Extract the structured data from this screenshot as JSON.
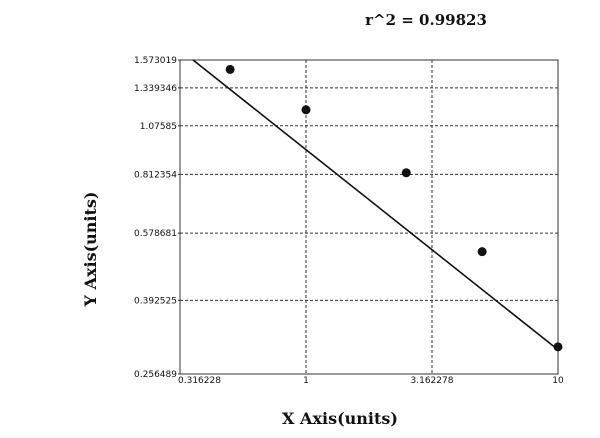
{
  "chart_data": {
    "type": "scatter",
    "title": "r^2  =  0.99823",
    "xlabel": "X Axis(units)",
    "ylabel": "Y Axis(units)",
    "x_scale": "log",
    "y_scale": "log",
    "xlim": [
      0.316228,
      10
    ],
    "ylim": [
      0.256489,
      1.573019
    ],
    "x_ticks": [
      0.316228,
      1,
      3.162278,
      10
    ],
    "x_tick_labels": [
      "0.316228",
      "1",
      "3.162278",
      "10"
    ],
    "y_ticks": [
      0.256489,
      0.392525,
      0.578681,
      0.812354,
      1.07585,
      1.339346,
      1.573019
    ],
    "y_tick_labels": [
      "0.256489",
      "0.392525",
      "0.578681",
      "0.812354",
      "1.07585",
      "1.339346",
      "1.573019"
    ],
    "grid": true,
    "series": [
      {
        "points": [
          {
            "x": 0.5,
            "y": 1.49
          },
          {
            "x": 1.0,
            "y": 1.18
          },
          {
            "x": 2.5,
            "y": 0.82
          },
          {
            "x": 5.0,
            "y": 0.52
          },
          {
            "x": 10.0,
            "y": 0.3
          }
        ]
      }
    ],
    "fit_line": {
      "x": [
        0.316228,
        10
      ],
      "y": [
        1.67,
        0.295
      ]
    }
  }
}
